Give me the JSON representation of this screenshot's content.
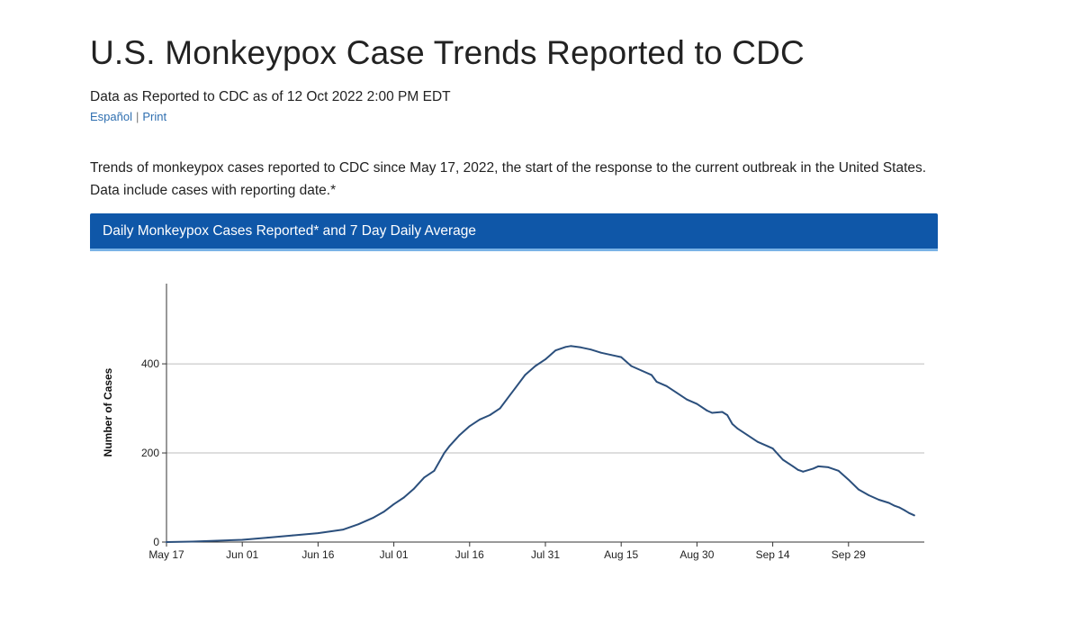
{
  "page": {
    "title": "U.S. Monkeypox Case Trends Reported to CDC",
    "as_of": "Data as Reported to CDC as of 12 Oct 2022 2:00 PM EDT",
    "links": {
      "espanol": "Español",
      "separator": "|",
      "print": "Print"
    },
    "intro": "Trends of monkeypox cases reported to CDC since May 17, 2022, the start of the response to the current outbreak in the United States. Data include cases with reporting date.*"
  },
  "colors": {
    "header_bg": "#0f57a8",
    "header_accent": "#7ab3e6",
    "link": "#2f6fb0",
    "series_line": "#2b4f7c",
    "gridline": "#bdbdbd"
  },
  "chart_data": {
    "type": "line",
    "title": "Daily Monkeypox Cases Reported* and 7 Day Daily Average",
    "xlabel": "",
    "ylabel": "Number of Cases",
    "ylim": [
      0,
      580
    ],
    "yticks": [
      0,
      200,
      400
    ],
    "grid": true,
    "x_tick_labels": [
      "May 17",
      "Jun 01",
      "Jun 16",
      "Jul 01",
      "Jul 16",
      "Jul 31",
      "Aug 15",
      "Aug 30",
      "Sep 14",
      "Sep 29"
    ],
    "x_tick_days": [
      0,
      15,
      30,
      45,
      60,
      75,
      90,
      105,
      120,
      135
    ],
    "x_domain_days": [
      0,
      150
    ],
    "series": [
      {
        "name": "7 Day Daily Average",
        "x_days": [
          0,
          5,
          10,
          15,
          20,
          25,
          30,
          35,
          38,
          41,
          43,
          45,
          47,
          49,
          51,
          53,
          55,
          56,
          58,
          60,
          62,
          64,
          66,
          68,
          69,
          71,
          73,
          75,
          77,
          79,
          80,
          82,
          84,
          86,
          88,
          90,
          92,
          94,
          96,
          97,
          99,
          101,
          103,
          105,
          107,
          108,
          110,
          111,
          112,
          113,
          115,
          117,
          119,
          120,
          122,
          124,
          125,
          126,
          128,
          129,
          131,
          133,
          135,
          137,
          139,
          141,
          143,
          144,
          145,
          146,
          147,
          148
        ],
        "values": [
          0,
          1,
          3,
          5,
          10,
          15,
          20,
          28,
          40,
          55,
          68,
          85,
          100,
          120,
          145,
          160,
          200,
          215,
          240,
          260,
          275,
          285,
          300,
          330,
          345,
          375,
          395,
          410,
          430,
          438,
          440,
          437,
          432,
          425,
          420,
          415,
          395,
          385,
          375,
          360,
          350,
          335,
          320,
          310,
          295,
          290,
          292,
          285,
          265,
          255,
          240,
          225,
          215,
          210,
          185,
          170,
          162,
          158,
          165,
          170,
          168,
          160,
          140,
          118,
          105,
          95,
          88,
          82,
          78,
          72,
          65,
          60
        ]
      }
    ]
  }
}
